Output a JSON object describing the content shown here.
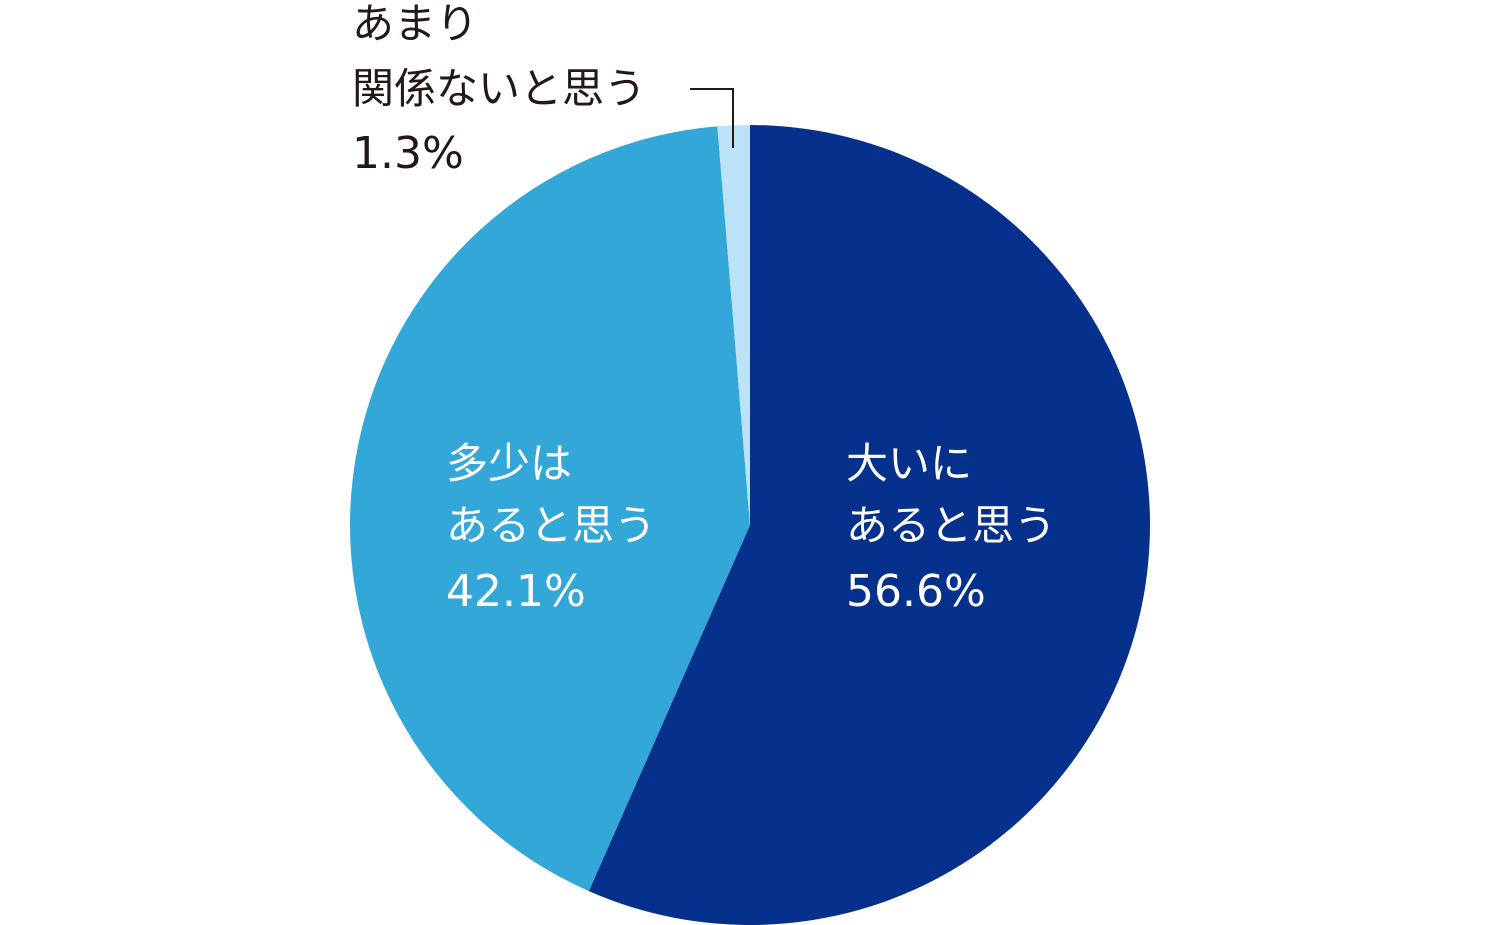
{
  "chart_data": {
    "type": "pie",
    "title": "",
    "slices": [
      {
        "label_lines": [
          "大いに",
          "あると思う"
        ],
        "value": 56.6,
        "value_label": "56.6%",
        "color": "#05318C"
      },
      {
        "label_lines": [
          "多少は",
          "あると思う"
        ],
        "value": 42.1,
        "value_label": "42.1%",
        "color": "#34A7D9"
      },
      {
        "label_lines": [
          "あまり",
          "関係ないと思う"
        ],
        "value": 1.3,
        "value_label": "1.3%",
        "color": "#BCE2F7"
      }
    ],
    "start_angle": "12 o'clock",
    "direction": "clockwise",
    "legend": "none",
    "label_colors": {
      "inside": "#ffffff",
      "outside": "#231815"
    }
  }
}
